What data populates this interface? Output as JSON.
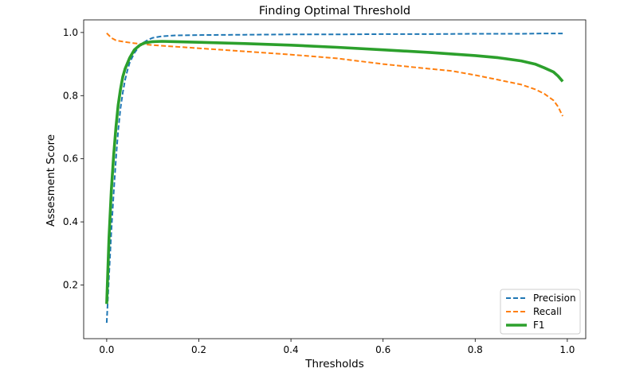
{
  "chart_data": {
    "type": "line",
    "title": "Finding Optimal Threshold",
    "xlabel": "Thresholds",
    "ylabel": "Assesment Score",
    "xlim": [
      -0.05,
      1.04
    ],
    "ylim": [
      0.03,
      1.04
    ],
    "xticks": [
      0.0,
      0.2,
      0.4,
      0.6,
      0.8,
      1.0
    ],
    "xtick_labels": [
      "0.0",
      "0.2",
      "0.4",
      "0.6",
      "0.8",
      "1.0"
    ],
    "yticks": [
      0.2,
      0.4,
      0.6,
      0.8,
      1.0
    ],
    "ytick_labels": [
      "0.2",
      "0.4",
      "0.6",
      "0.8",
      "1.0"
    ],
    "grid": false,
    "legend_position": "lower-right",
    "series": [
      {
        "name": "Precision",
        "color": "#1f77b4",
        "style": "dashed",
        "x": [
          0.0,
          0.005,
          0.01,
          0.015,
          0.02,
          0.025,
          0.03,
          0.035,
          0.04,
          0.045,
          0.05,
          0.06,
          0.07,
          0.08,
          0.09,
          0.1,
          0.12,
          0.15,
          0.2,
          0.3,
          0.4,
          0.5,
          0.6,
          0.7,
          0.8,
          0.9,
          0.95,
          0.99
        ],
        "y": [
          0.08,
          0.23,
          0.37,
          0.49,
          0.6,
          0.69,
          0.76,
          0.81,
          0.85,
          0.88,
          0.905,
          0.935,
          0.955,
          0.968,
          0.977,
          0.983,
          0.988,
          0.991,
          0.992,
          0.993,
          0.994,
          0.994,
          0.995,
          0.995,
          0.996,
          0.996,
          0.997,
          0.997
        ]
      },
      {
        "name": "Recall",
        "color": "#ff7f0e",
        "style": "dashed",
        "x": [
          0.0,
          0.01,
          0.02,
          0.04,
          0.06,
          0.1,
          0.15,
          0.2,
          0.3,
          0.4,
          0.5,
          0.6,
          0.7,
          0.75,
          0.8,
          0.85,
          0.9,
          0.93,
          0.95,
          0.97,
          0.98,
          0.99
        ],
        "y": [
          0.998,
          0.983,
          0.975,
          0.97,
          0.966,
          0.96,
          0.955,
          0.95,
          0.94,
          0.93,
          0.918,
          0.9,
          0.885,
          0.878,
          0.865,
          0.85,
          0.835,
          0.82,
          0.806,
          0.785,
          0.765,
          0.735
        ]
      },
      {
        "name": "F1",
        "color": "#2ca02c",
        "style": "solid",
        "x": [
          0.0,
          0.005,
          0.01,
          0.015,
          0.02,
          0.025,
          0.03,
          0.035,
          0.04,
          0.05,
          0.06,
          0.07,
          0.08,
          0.09,
          0.1,
          0.12,
          0.15,
          0.2,
          0.3,
          0.4,
          0.5,
          0.6,
          0.7,
          0.8,
          0.85,
          0.9,
          0.93,
          0.95,
          0.97,
          0.98,
          0.99
        ],
        "y": [
          0.14,
          0.35,
          0.5,
          0.61,
          0.7,
          0.77,
          0.82,
          0.86,
          0.885,
          0.92,
          0.945,
          0.958,
          0.966,
          0.969,
          0.971,
          0.972,
          0.971,
          0.969,
          0.965,
          0.96,
          0.953,
          0.945,
          0.937,
          0.927,
          0.92,
          0.91,
          0.9,
          0.888,
          0.875,
          0.862,
          0.845
        ]
      }
    ]
  }
}
